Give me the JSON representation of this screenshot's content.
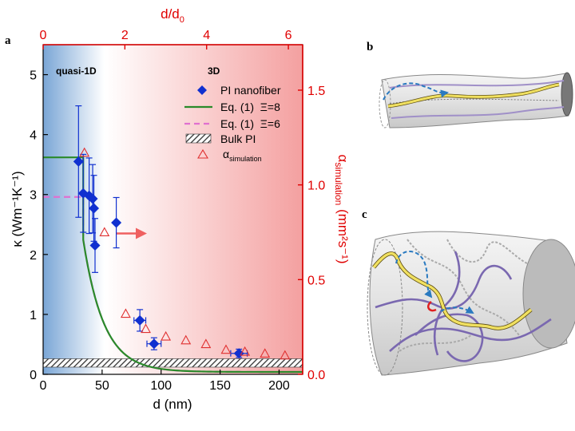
{
  "panel_labels": {
    "a": "a",
    "b": "b",
    "c": "c"
  },
  "colors": {
    "series_blue": "#1030d0",
    "fit_green": "#2a8a2a",
    "fit_pink": "#e070d0",
    "sim_red": "#e03030",
    "axis_red": "#e00000",
    "arrow_red": "#ef6060",
    "bulk_gray": "#555555",
    "gradient_blue": "#7aa6d6",
    "gradient_red": "#f4a0a0"
  },
  "chart_data": {
    "type": "scatter",
    "xlabel": "d (nm)",
    "ylabel": "κ (Wm⁻¹K⁻¹)",
    "y2label_main": "α",
    "y2label_sub": "simulation",
    "y2label_units": " (mm²s⁻¹)",
    "top_xlabel": "d/d",
    "top_xlabel_sub": "0",
    "xlim": [
      0,
      220
    ],
    "ylim": [
      0,
      5.5
    ],
    "y2lim": [
      0,
      1.74
    ],
    "top_xlim": [
      0,
      6.35
    ],
    "xticks": [
      0,
      50,
      100,
      150,
      200
    ],
    "yticks": [
      0,
      1,
      2,
      3,
      4,
      5
    ],
    "y2ticks": [
      0.0,
      0.5,
      1.0,
      1.5
    ],
    "y2ticklabels": [
      "0.0",
      "0.5",
      "1.0",
      "1.5"
    ],
    "top_xticks": [
      0,
      2,
      4,
      6
    ],
    "region_labels": {
      "left": "quasi-1D",
      "right": "3D"
    },
    "series": [
      {
        "name": "PI nanofiber",
        "marker": "diamond",
        "x": [
          30,
          34,
          39,
          42,
          43,
          44,
          62,
          82,
          94,
          166
        ],
        "y": [
          3.55,
          3.02,
          2.98,
          2.93,
          2.77,
          2.15,
          2.53,
          0.9,
          0.51,
          0.35
        ],
        "yerr": [
          0.93,
          0.65,
          0.63,
          0.57,
          0.55,
          0.45,
          0.42,
          0.18,
          0.1,
          0.07
        ],
        "xerr": [
          0,
          0,
          0,
          0,
          0,
          0,
          0,
          5,
          6,
          7
        ]
      },
      {
        "name": "α simulation",
        "marker": "triangle-open",
        "axis": "right",
        "x": [
          35,
          52,
          70,
          87,
          104,
          121,
          138,
          155,
          171,
          188,
          205
        ],
        "y": [
          1.17,
          0.75,
          0.32,
          0.24,
          0.2,
          0.18,
          0.16,
          0.13,
          0.12,
          0.11,
          0.1
        ]
      }
    ],
    "fits": [
      {
        "name": "Eq. (1)  Ξ=8",
        "style": "solid",
        "plateau": 3.62,
        "transition_x": 34,
        "A": 15.3,
        "B": 0.057,
        "C": 0.04
      },
      {
        "name": "Eq. (1)  Ξ=6",
        "style": "dashed",
        "plateau": 2.96,
        "transition_x": 34,
        "A": 15.3,
        "B": 0.057,
        "C": 0.04
      }
    ],
    "bulk": {
      "name": "Bulk PI",
      "ymin": 0.12,
      "ymax": 0.26
    },
    "gradient_transition_x": 52,
    "arrow": {
      "x_from": 62,
      "x_to": 88,
      "y": 2.35
    },
    "legend": {
      "position": "top-right",
      "entries": [
        "PI nanofiber",
        "Eq. (1)  Ξ=8",
        "Eq. (1)  Ξ=6",
        "Bulk PI"
      ],
      "sim_label_main": "α",
      "sim_label_sub": "simulation"
    }
  }
}
